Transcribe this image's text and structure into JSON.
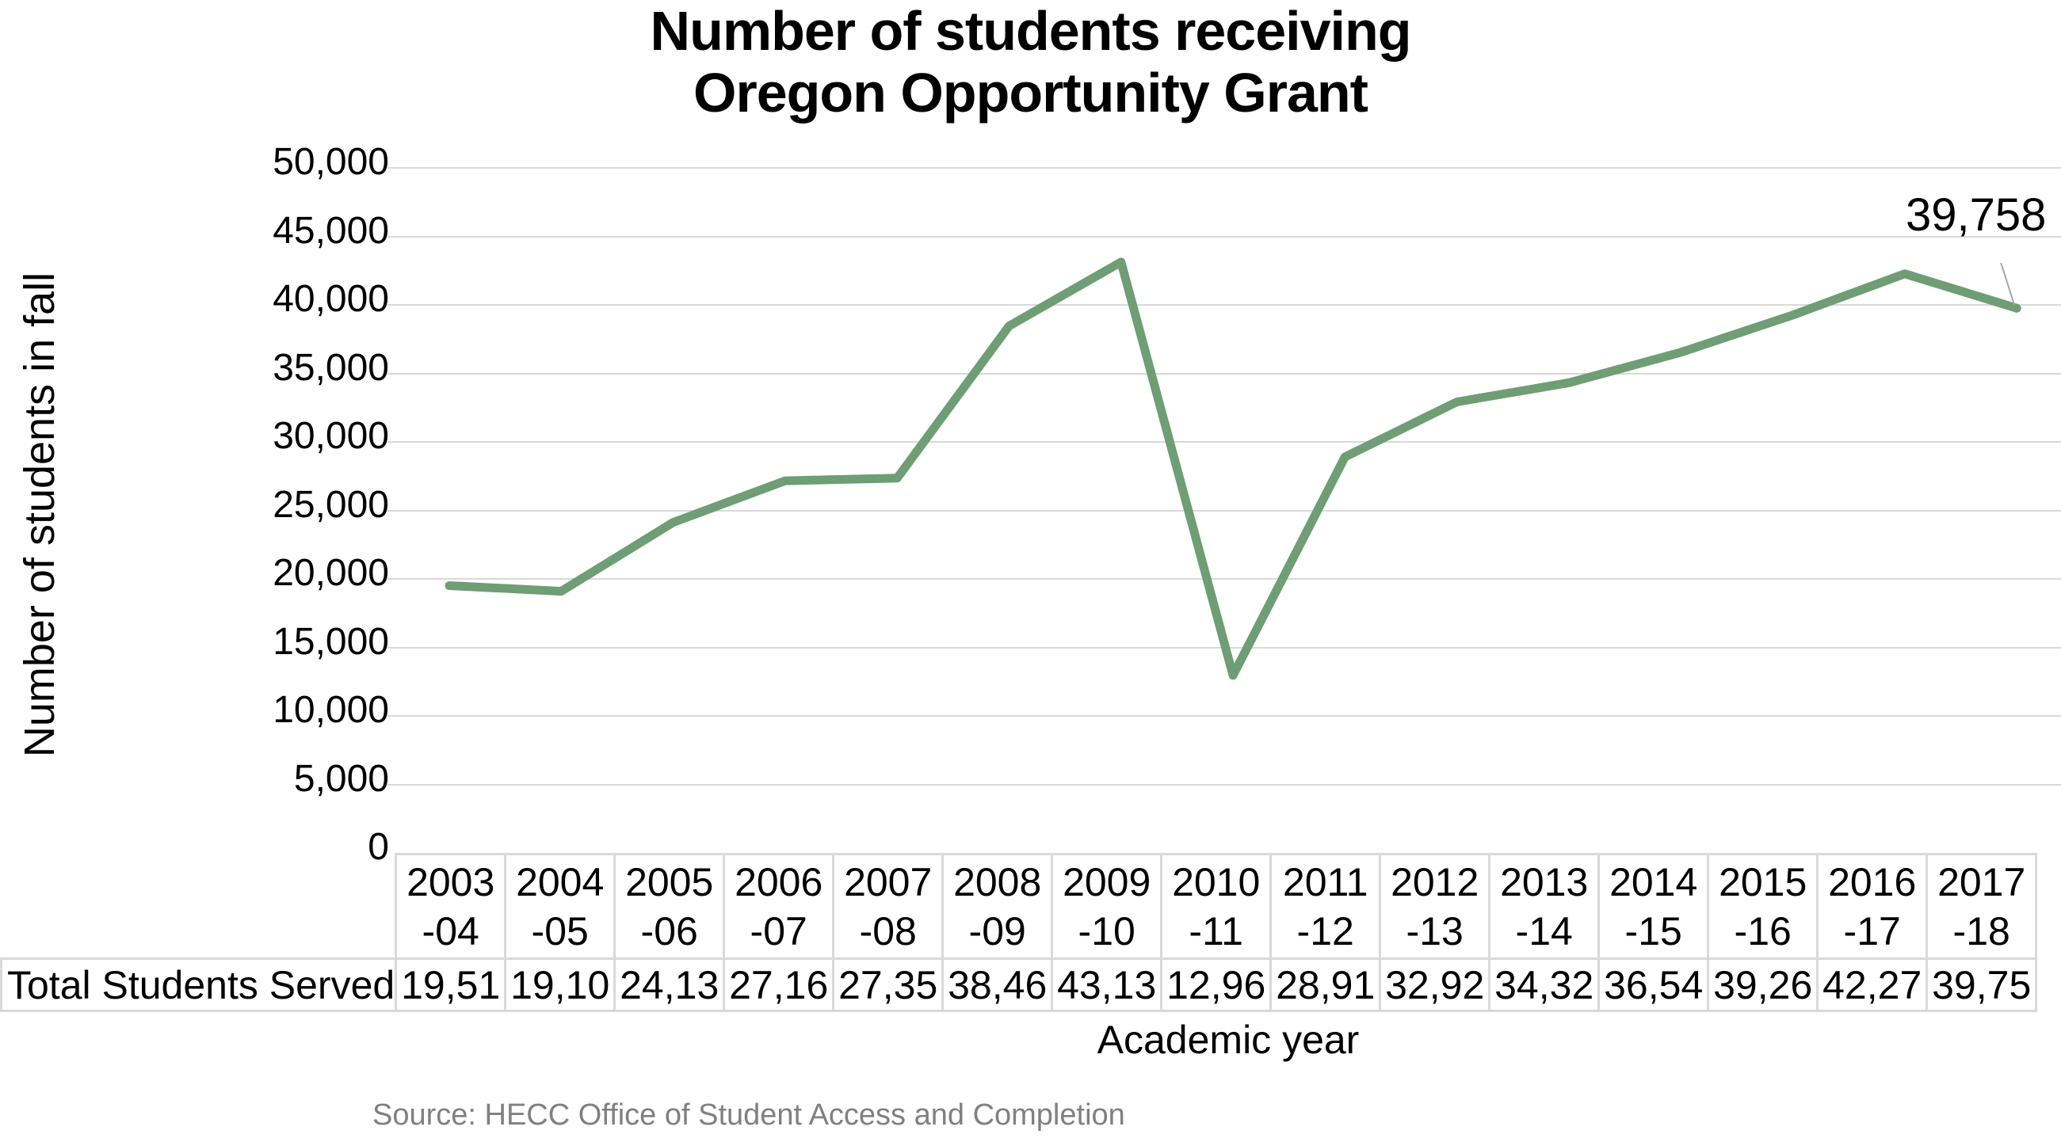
{
  "chart": {
    "title_line1": "Number of students receiving",
    "title_line2": "Oregon Opportunity Grant",
    "ylabel": "Number of students in fall",
    "xlabel": "Academic year",
    "source": "Source: HECC Office of Student Access and Completion",
    "row_label": "Total Students Served",
    "data_label": "39,758",
    "line_color": "#6e9e74",
    "yticks": [
      "50,000",
      "45,000",
      "40,000",
      "35,000",
      "30,000",
      "25,000",
      "20,000",
      "15,000",
      "10,000",
      "5,000",
      "0"
    ],
    "columns": [
      {
        "year": "2003",
        "suffix": "-04",
        "shown": "19,51"
      },
      {
        "year": "2004",
        "suffix": "-05",
        "shown": "19,10"
      },
      {
        "year": "2005",
        "suffix": "-06",
        "shown": "24,13"
      },
      {
        "year": "2006",
        "suffix": "-07",
        "shown": "27,16"
      },
      {
        "year": "2007",
        "suffix": "-08",
        "shown": "27,35"
      },
      {
        "year": "2008",
        "suffix": "-09",
        "shown": "38,46"
      },
      {
        "year": "2009",
        "suffix": "-10",
        "shown": "43,13"
      },
      {
        "year": "2010",
        "suffix": "-11",
        "shown": "12,96"
      },
      {
        "year": "2011",
        "suffix": "-12",
        "shown": "28,91"
      },
      {
        "year": "2012",
        "suffix": "-13",
        "shown": "32,92"
      },
      {
        "year": "2013",
        "suffix": "-14",
        "shown": "34,32"
      },
      {
        "year": "2014",
        "suffix": "-15",
        "shown": "36,54"
      },
      {
        "year": "2015",
        "suffix": "-16",
        "shown": "39,26"
      },
      {
        "year": "2016",
        "suffix": "-17",
        "shown": "42,27"
      },
      {
        "year": "2017",
        "suffix": "-18",
        "shown": "39,75"
      }
    ]
  },
  "chart_data": {
    "type": "line",
    "title": "Number of students receiving Oregon Opportunity Grant",
    "xlabel": "Academic year",
    "ylabel": "Number of students in fall",
    "categories": [
      "2003-04",
      "2004-05",
      "2005-06",
      "2006-07",
      "2007-08",
      "2008-09",
      "2009-10",
      "2010-11",
      "2011-12",
      "2012-13",
      "2013-14",
      "2014-15",
      "2015-16",
      "2016-17",
      "2017-18"
    ],
    "series": [
      {
        "name": "Total Students Served",
        "values": [
          19510,
          19100,
          24130,
          27160,
          27350,
          38460,
          43130,
          12960,
          28910,
          32920,
          34320,
          36540,
          39260,
          42270,
          39758
        ],
        "table_display": [
          "19,51",
          "19,10",
          "24,13",
          "27,16",
          "27,35",
          "38,46",
          "43,13",
          "12,96",
          "28,91",
          "32,92",
          "34,32",
          "36,54",
          "39,26",
          "42,27",
          "39,75"
        ]
      }
    ],
    "ylim": [
      0,
      50000
    ],
    "ytick_step": 5000,
    "grid": true,
    "legend": "data table below x-axis",
    "annotations": [
      {
        "text": "39,758",
        "point": "2017-18"
      }
    ],
    "source": "Source: HECC Office of Student Access and Completion"
  }
}
